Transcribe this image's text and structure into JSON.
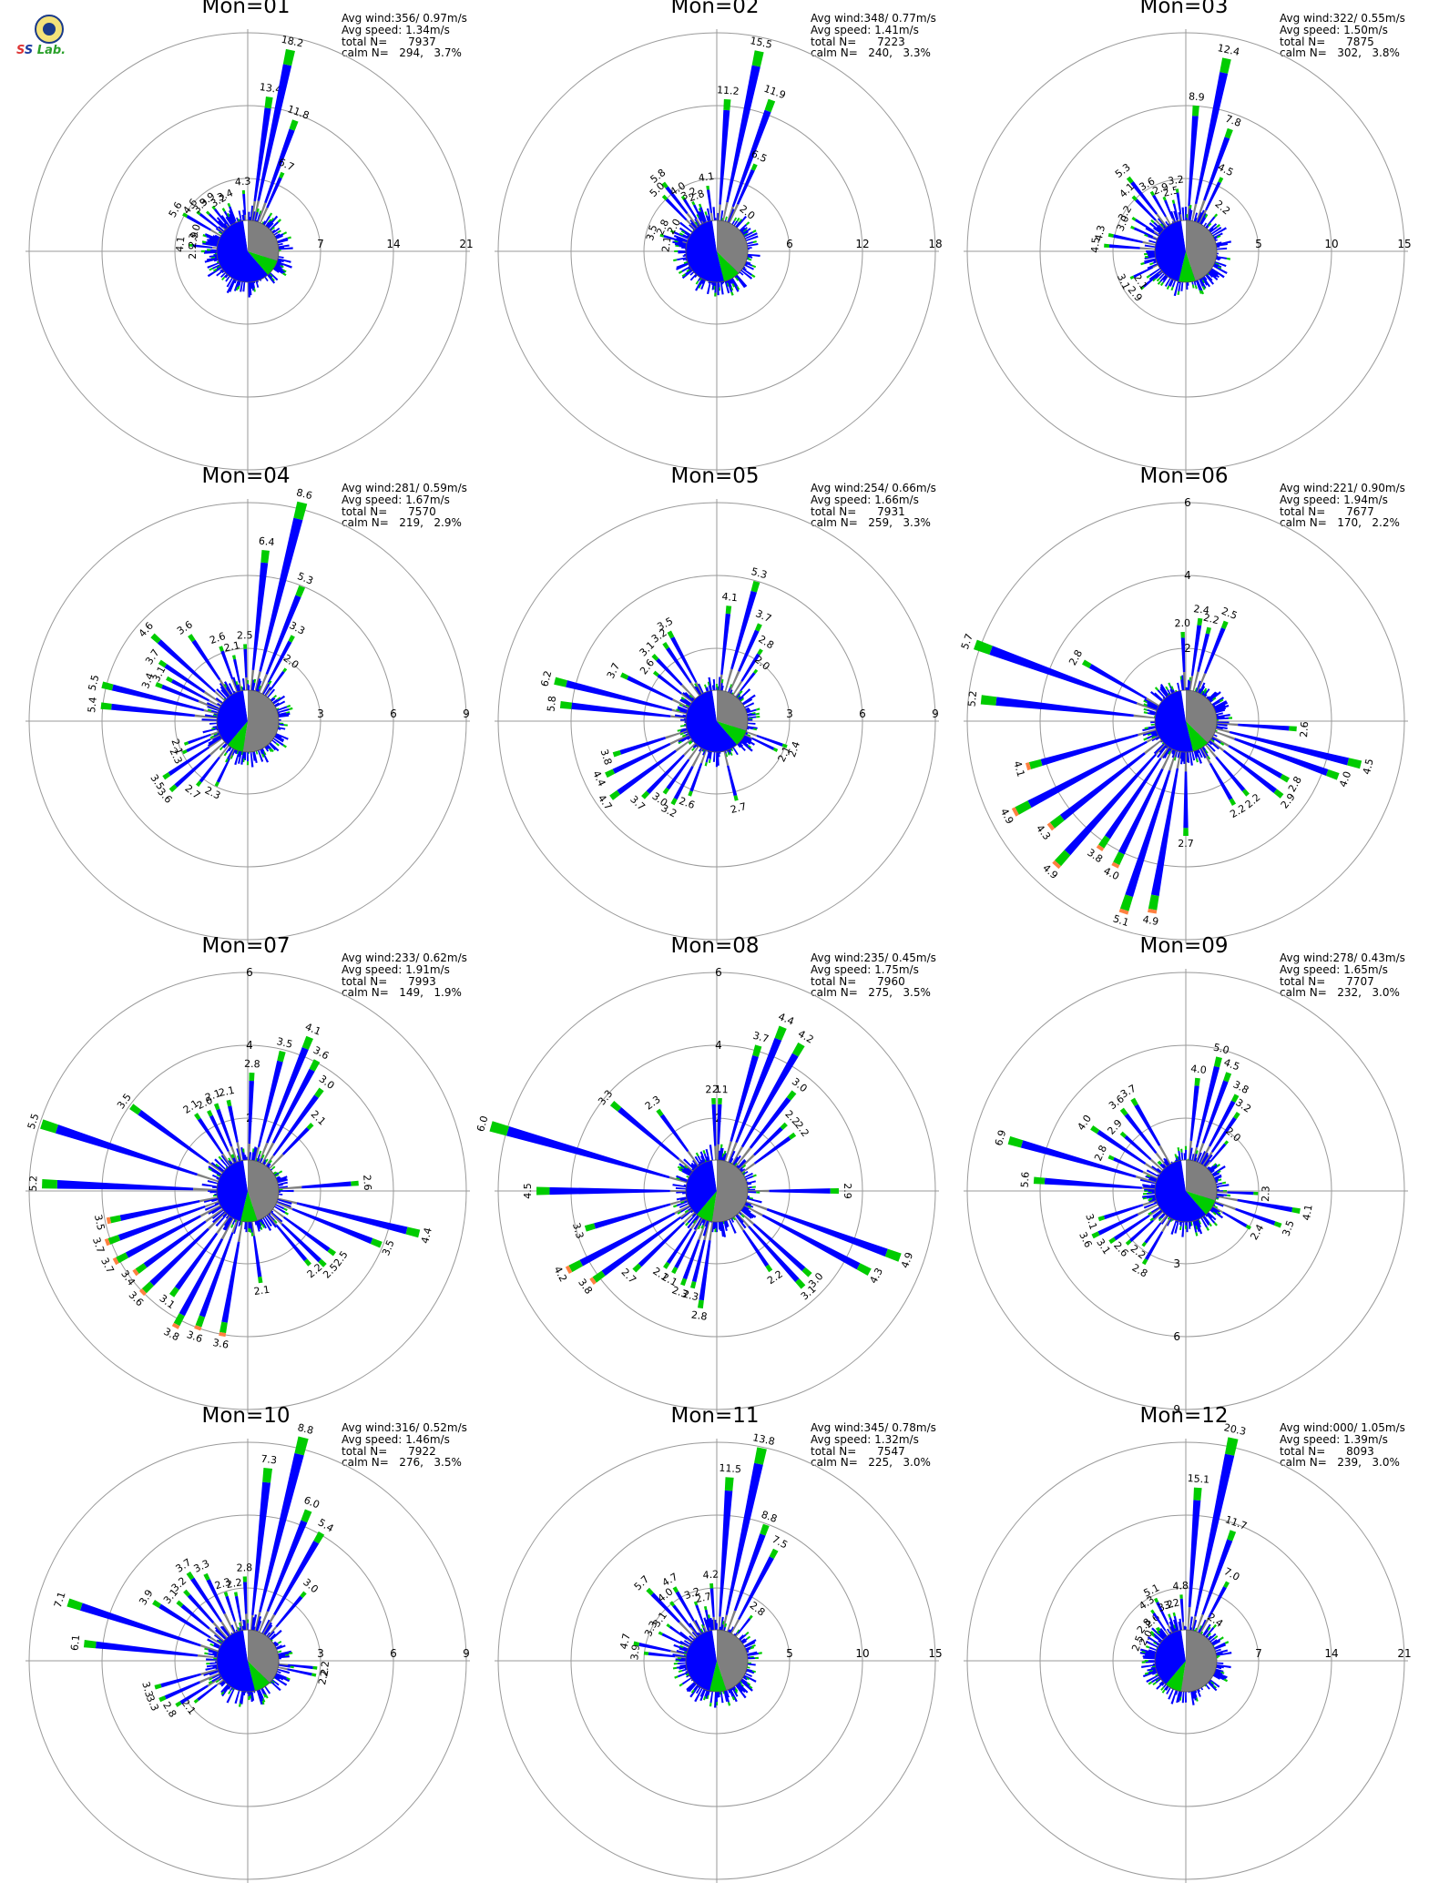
{
  "colors": {
    "low": "#7f7f7f",
    "blue": "#0000ff",
    "green": "#00cc00",
    "orange": "#ff8040",
    "ring": "#9a9a9a"
  },
  "stat_labels": {
    "avg_wind": "Avg wind:",
    "avg_speed": "Avg speed:",
    "total": "total N=",
    "calm": "calm N="
  },
  "logo": {
    "icon": "lab-seal-icon"
  },
  "chart_data": [
    {
      "type": "wind-rose",
      "title": "Mon=01",
      "rings": [
        7,
        14,
        21
      ],
      "ring_label_axis": "east",
      "avg_wind": "356/ 0.97m/s",
      "avg_speed": "1.34m/s",
      "total_n": "7937",
      "calm_n": "294,",
      "calm_pct": "3.7%",
      "labeled": [
        [
          12,
          18.2
        ],
        [
          8,
          13.4
        ],
        [
          20,
          11.8
        ],
        [
          24,
          6.7
        ],
        [
          356,
          4.3
        ],
        [
          300,
          5.6
        ],
        [
          308,
          4.6
        ],
        [
          314,
          3.9
        ],
        [
          322,
          3.9
        ],
        [
          330,
          3.2
        ],
        [
          338,
          3.4
        ],
        [
          290,
          3.0
        ],
        [
          282,
          2.9
        ],
        [
          276,
          4.1
        ],
        [
          270,
          2.9
        ]
      ]
    },
    {
      "type": "wind-rose",
      "title": "Mon=02",
      "rings": [
        6,
        12,
        18
      ],
      "ring_label_axis": "east",
      "avg_wind": "348/ 0.77m/s",
      "avg_speed": "1.41m/s",
      "total_n": "7223",
      "calm_n": "240,",
      "calm_pct": "3.3%",
      "labeled": [
        [
          12,
          15.5
        ],
        [
          4,
          11.2
        ],
        [
          20,
          11.9
        ],
        [
          24,
          6.5
        ],
        [
          38,
          2.0
        ],
        [
          352,
          4.1
        ],
        [
          322,
          5.8
        ],
        [
          316,
          5.0
        ],
        [
          328,
          4.0
        ],
        [
          334,
          3.2
        ],
        [
          340,
          2.8
        ],
        [
          300,
          2.0
        ],
        [
          294,
          2.8
        ],
        [
          286,
          3.5
        ],
        [
          278,
          2.1
        ]
      ]
    },
    {
      "type": "wind-rose",
      "title": "Mon=03",
      "rings": [
        5,
        10,
        15
      ],
      "ring_label_axis": "east",
      "avg_wind": "322/ 0.55m/s",
      "avg_speed": "1.50m/s",
      "total_n": "7875",
      "calm_n": "302,",
      "calm_pct": "3.8%",
      "labeled": [
        [
          12,
          12.4
        ],
        [
          4,
          8.9
        ],
        [
          20,
          7.8
        ],
        [
          26,
          4.5
        ],
        [
          40,
          2.2
        ],
        [
          352,
          3.2
        ],
        [
          322,
          5.3
        ],
        [
          316,
          4.1
        ],
        [
          330,
          3.6
        ],
        [
          338,
          2.9
        ],
        [
          346,
          2.5
        ],
        [
          302,
          3.2
        ],
        [
          294,
          3.0
        ],
        [
          282,
          4.3
        ],
        [
          274,
          4.5
        ],
        [
          244,
          3.1
        ],
        [
          236,
          2.1
        ],
        [
          230,
          2.9
        ]
      ]
    },
    {
      "type": "wind-rose",
      "title": "Mon=04",
      "rings": [
        3,
        6,
        9
      ],
      "ring_label_axis": "east",
      "avg_wind": "281/ 0.59m/s",
      "avg_speed": "1.67m/s",
      "total_n": "7570",
      "calm_n": "219,",
      "calm_pct": "2.9%",
      "labeled": [
        [
          14,
          8.6
        ],
        [
          6,
          6.4
        ],
        [
          22,
          5.3
        ],
        [
          28,
          3.3
        ],
        [
          36,
          2.0
        ],
        [
          358,
          2.5
        ],
        [
          312,
          4.6
        ],
        [
          326,
          3.6
        ],
        [
          304,
          3.7
        ],
        [
          298,
          3.1
        ],
        [
          292,
          3.4
        ],
        [
          284,
          5.5
        ],
        [
          276,
          5.4
        ],
        [
          250,
          2.1
        ],
        [
          244,
          2.3
        ],
        [
          236,
          3.5
        ],
        [
          228,
          3.6
        ],
        [
          218,
          2.7
        ],
        [
          206,
          2.3
        ],
        [
          348,
          2.1
        ],
        [
          340,
          2.6
        ]
      ]
    },
    {
      "type": "wind-rose",
      "title": "Mon=05",
      "rings": [
        3,
        6,
        9
      ],
      "ring_label_axis": "east",
      "avg_wind": "254/ 0.66m/s",
      "avg_speed": "1.66m/s",
      "total_n": "7931",
      "calm_n": "259,",
      "calm_pct": "3.3%",
      "labeled": [
        [
          16,
          5.3
        ],
        [
          6,
          4.1
        ],
        [
          24,
          3.7
        ],
        [
          32,
          2.8
        ],
        [
          38,
          2.0
        ],
        [
          332,
          3.5
        ],
        [
          326,
          3.2
        ],
        [
          316,
          3.1
        ],
        [
          308,
          2.6
        ],
        [
          296,
          3.7
        ],
        [
          284,
          6.2
        ],
        [
          276,
          5.8
        ],
        [
          252,
          3.8
        ],
        [
          244,
          4.4
        ],
        [
          234,
          4.7
        ],
        [
          224,
          3.7
        ],
        [
          216,
          3.0
        ],
        [
          208,
          3.2
        ],
        [
          200,
          2.6
        ],
        [
          166,
          2.7
        ],
        [
          110,
          2.4
        ],
        [
          116,
          2.1
        ]
      ]
    },
    {
      "type": "wind-rose",
      "title": "Mon=06",
      "rings": [
        2,
        4,
        6
      ],
      "ring_label_axis": "north",
      "avg_wind": "221/ 0.90m/s",
      "avg_speed": "1.94m/s",
      "total_n": "7677",
      "calm_n": "170,",
      "calm_pct": "2.2%",
      "labeled": [
        [
          8,
          2.4
        ],
        [
          14,
          2.2
        ],
        [
          22,
          2.5
        ],
        [
          358,
          2.0
        ],
        [
          300,
          2.8
        ],
        [
          290,
          5.7
        ],
        [
          276,
          5.2
        ],
        [
          254,
          4.1
        ],
        [
          242,
          4.9
        ],
        [
          232,
          4.3
        ],
        [
          222,
          4.9
        ],
        [
          214,
          3.8
        ],
        [
          206,
          4.0
        ],
        [
          198,
          5.1
        ],
        [
          190,
          4.9
        ],
        [
          180,
          2.7
        ],
        [
          94,
          2.6
        ],
        [
          104,
          4.5
        ],
        [
          110,
          4.0
        ],
        [
          120,
          2.8
        ],
        [
          128,
          2.9
        ],
        [
          140,
          2.2
        ],
        [
          150,
          2.2
        ]
      ]
    },
    {
      "type": "wind-rose",
      "title": "Mon=07",
      "rings": [
        2,
        4,
        6
      ],
      "ring_label_axis": "north",
      "avg_wind": "233/ 0.62m/s",
      "avg_speed": "1.91m/s",
      "total_n": "7993",
      "calm_n": "149,",
      "calm_pct": "1.9%",
      "labeled": [
        [
          14,
          3.5
        ],
        [
          22,
          4.1
        ],
        [
          28,
          3.6
        ],
        [
          36,
          3.0
        ],
        [
          44,
          2.1
        ],
        [
          2,
          2.8
        ],
        [
          348,
          2.1
        ],
        [
          340,
          2.1
        ],
        [
          334,
          2.0
        ],
        [
          326,
          2.1
        ],
        [
          306,
          3.5
        ],
        [
          288,
          5.5
        ],
        [
          272,
          5.2
        ],
        [
          258,
          3.5
        ],
        [
          250,
          3.7
        ],
        [
          242,
          3.7
        ],
        [
          234,
          3.4
        ],
        [
          226,
          3.6
        ],
        [
          216,
          3.1
        ],
        [
          208,
          3.8
        ],
        [
          200,
          3.6
        ],
        [
          190,
          3.6
        ],
        [
          172,
          2.1
        ],
        [
          86,
          2.6
        ],
        [
          104,
          4.4
        ],
        [
          112,
          3.5
        ],
        [
          126,
          2.5
        ],
        [
          134,
          2.5
        ],
        [
          140,
          2.2
        ]
      ]
    },
    {
      "type": "wind-rose",
      "title": "Mon=08",
      "rings": [
        2,
        4,
        6
      ],
      "ring_label_axis": "north",
      "avg_wind": "235/ 0.45m/s",
      "avg_speed": "1.75m/s",
      "total_n": "7960",
      "calm_n": "275,",
      "calm_pct": "3.5%",
      "labeled": [
        [
          16,
          3.7
        ],
        [
          22,
          4.4
        ],
        [
          30,
          4.2
        ],
        [
          38,
          3.0
        ],
        [
          46,
          2.2
        ],
        [
          54,
          2.2
        ],
        [
          358,
          2.1
        ],
        [
          2,
          2.1
        ],
        [
          324,
          2.3
        ],
        [
          310,
          3.3
        ],
        [
          286,
          6.0
        ],
        [
          270,
          4.5
        ],
        [
          254,
          3.3
        ],
        [
          242,
          4.2
        ],
        [
          234,
          3.8
        ],
        [
          226,
          2.7
        ],
        [
          214,
          2.1
        ],
        [
          208,
          2.1
        ],
        [
          200,
          2.3
        ],
        [
          194,
          2.3
        ],
        [
          188,
          2.8
        ],
        [
          146,
          2.2
        ],
        [
          138,
          3.1
        ],
        [
          132,
          3.0
        ],
        [
          90,
          2.9
        ],
        [
          110,
          4.9
        ],
        [
          118,
          4.3
        ]
      ]
    },
    {
      "type": "wind-rose",
      "title": "Mon=09",
      "rings": [
        3,
        6,
        9
      ],
      "ring_label_axis": "south",
      "avg_wind": "278/ 0.43m/s",
      "avg_speed": "1.65m/s",
      "total_n": "7707",
      "calm_n": "232,",
      "calm_pct": "3.0%",
      "labeled": [
        [
          6,
          4.0
        ],
        [
          14,
          5.0
        ],
        [
          20,
          4.5
        ],
        [
          28,
          3.8
        ],
        [
          34,
          3.2
        ],
        [
          40,
          2.0
        ],
        [
          330,
          3.7
        ],
        [
          322,
          3.6
        ],
        [
          312,
          2.9
        ],
        [
          304,
          4.0
        ],
        [
          294,
          2.8
        ],
        [
          286,
          6.9
        ],
        [
          274,
          5.6
        ],
        [
          252,
          3.1
        ],
        [
          244,
          3.6
        ],
        [
          236,
          3.1
        ],
        [
          228,
          2.6
        ],
        [
          218,
          2.2
        ],
        [
          210,
          2.8
        ],
        [
          92,
          2.3
        ],
        [
          100,
          4.1
        ],
        [
          110,
          3.5
        ],
        [
          120,
          2.4
        ]
      ]
    },
    {
      "type": "wind-rose",
      "title": "Mon=10",
      "rings": [
        3,
        6,
        9
      ],
      "ring_label_axis": "east",
      "avg_wind": "316/ 0.52m/s",
      "avg_speed": "1.46m/s",
      "total_n": "7922",
      "calm_n": "276,",
      "calm_pct": "3.5%",
      "labeled": [
        [
          14,
          8.8
        ],
        [
          6,
          7.3
        ],
        [
          22,
          6.0
        ],
        [
          30,
          5.4
        ],
        [
          40,
          3.0
        ],
        [
          358,
          2.8
        ],
        [
          334,
          3.3
        ],
        [
          326,
          3.7
        ],
        [
          318,
          3.2
        ],
        [
          310,
          3.1
        ],
        [
          302,
          3.9
        ],
        [
          288,
          7.1
        ],
        [
          276,
          6.1
        ],
        [
          254,
          3.3
        ],
        [
          246,
          3.3
        ],
        [
          238,
          2.8
        ],
        [
          232,
          2.1
        ],
        [
          342,
          2.3
        ],
        [
          350,
          2.2
        ],
        [
          96,
          2.2
        ],
        [
          102,
          2.2
        ]
      ]
    },
    {
      "type": "wind-rose",
      "title": "Mon=11",
      "rings": [
        5,
        10,
        15
      ],
      "ring_label_axis": "east",
      "avg_wind": "345/ 0.78m/s",
      "avg_speed": "1.32m/s",
      "total_n": "7547",
      "calm_n": "225,",
      "calm_pct": "3.0%",
      "labeled": [
        [
          12,
          13.8
        ],
        [
          4,
          11.5
        ],
        [
          20,
          8.8
        ],
        [
          28,
          7.5
        ],
        [
          38,
          2.8
        ],
        [
          356,
          4.2
        ],
        [
          348,
          2.7
        ],
        [
          340,
          3.2
        ],
        [
          330,
          4.7
        ],
        [
          322,
          4.0
        ],
        [
          316,
          5.7
        ],
        [
          306,
          3.1
        ],
        [
          296,
          3.3
        ],
        [
          282,
          4.7
        ],
        [
          276,
          3.9
        ]
      ]
    },
    {
      "type": "wind-rose",
      "title": "Mon=12",
      "rings": [
        7,
        14,
        21
      ],
      "ring_label_axis": "east",
      "avg_wind": "000/ 1.05m/s",
      "avg_speed": "1.39m/s",
      "total_n": "8093",
      "calm_n": "239,",
      "calm_pct": "3.0%",
      "labeled": [
        [
          12,
          20.3
        ],
        [
          4,
          15.1
        ],
        [
          20,
          11.7
        ],
        [
          28,
          7.0
        ],
        [
          36,
          2.4
        ],
        [
          356,
          4.8
        ],
        [
          334,
          5.1
        ],
        [
          326,
          4.3
        ],
        [
          340,
          3.2
        ],
        [
          346,
          3.2
        ],
        [
          320,
          2.6
        ],
        [
          310,
          2.8
        ],
        [
          300,
          2.0
        ],
        [
          290,
          2.5
        ]
      ]
    }
  ]
}
